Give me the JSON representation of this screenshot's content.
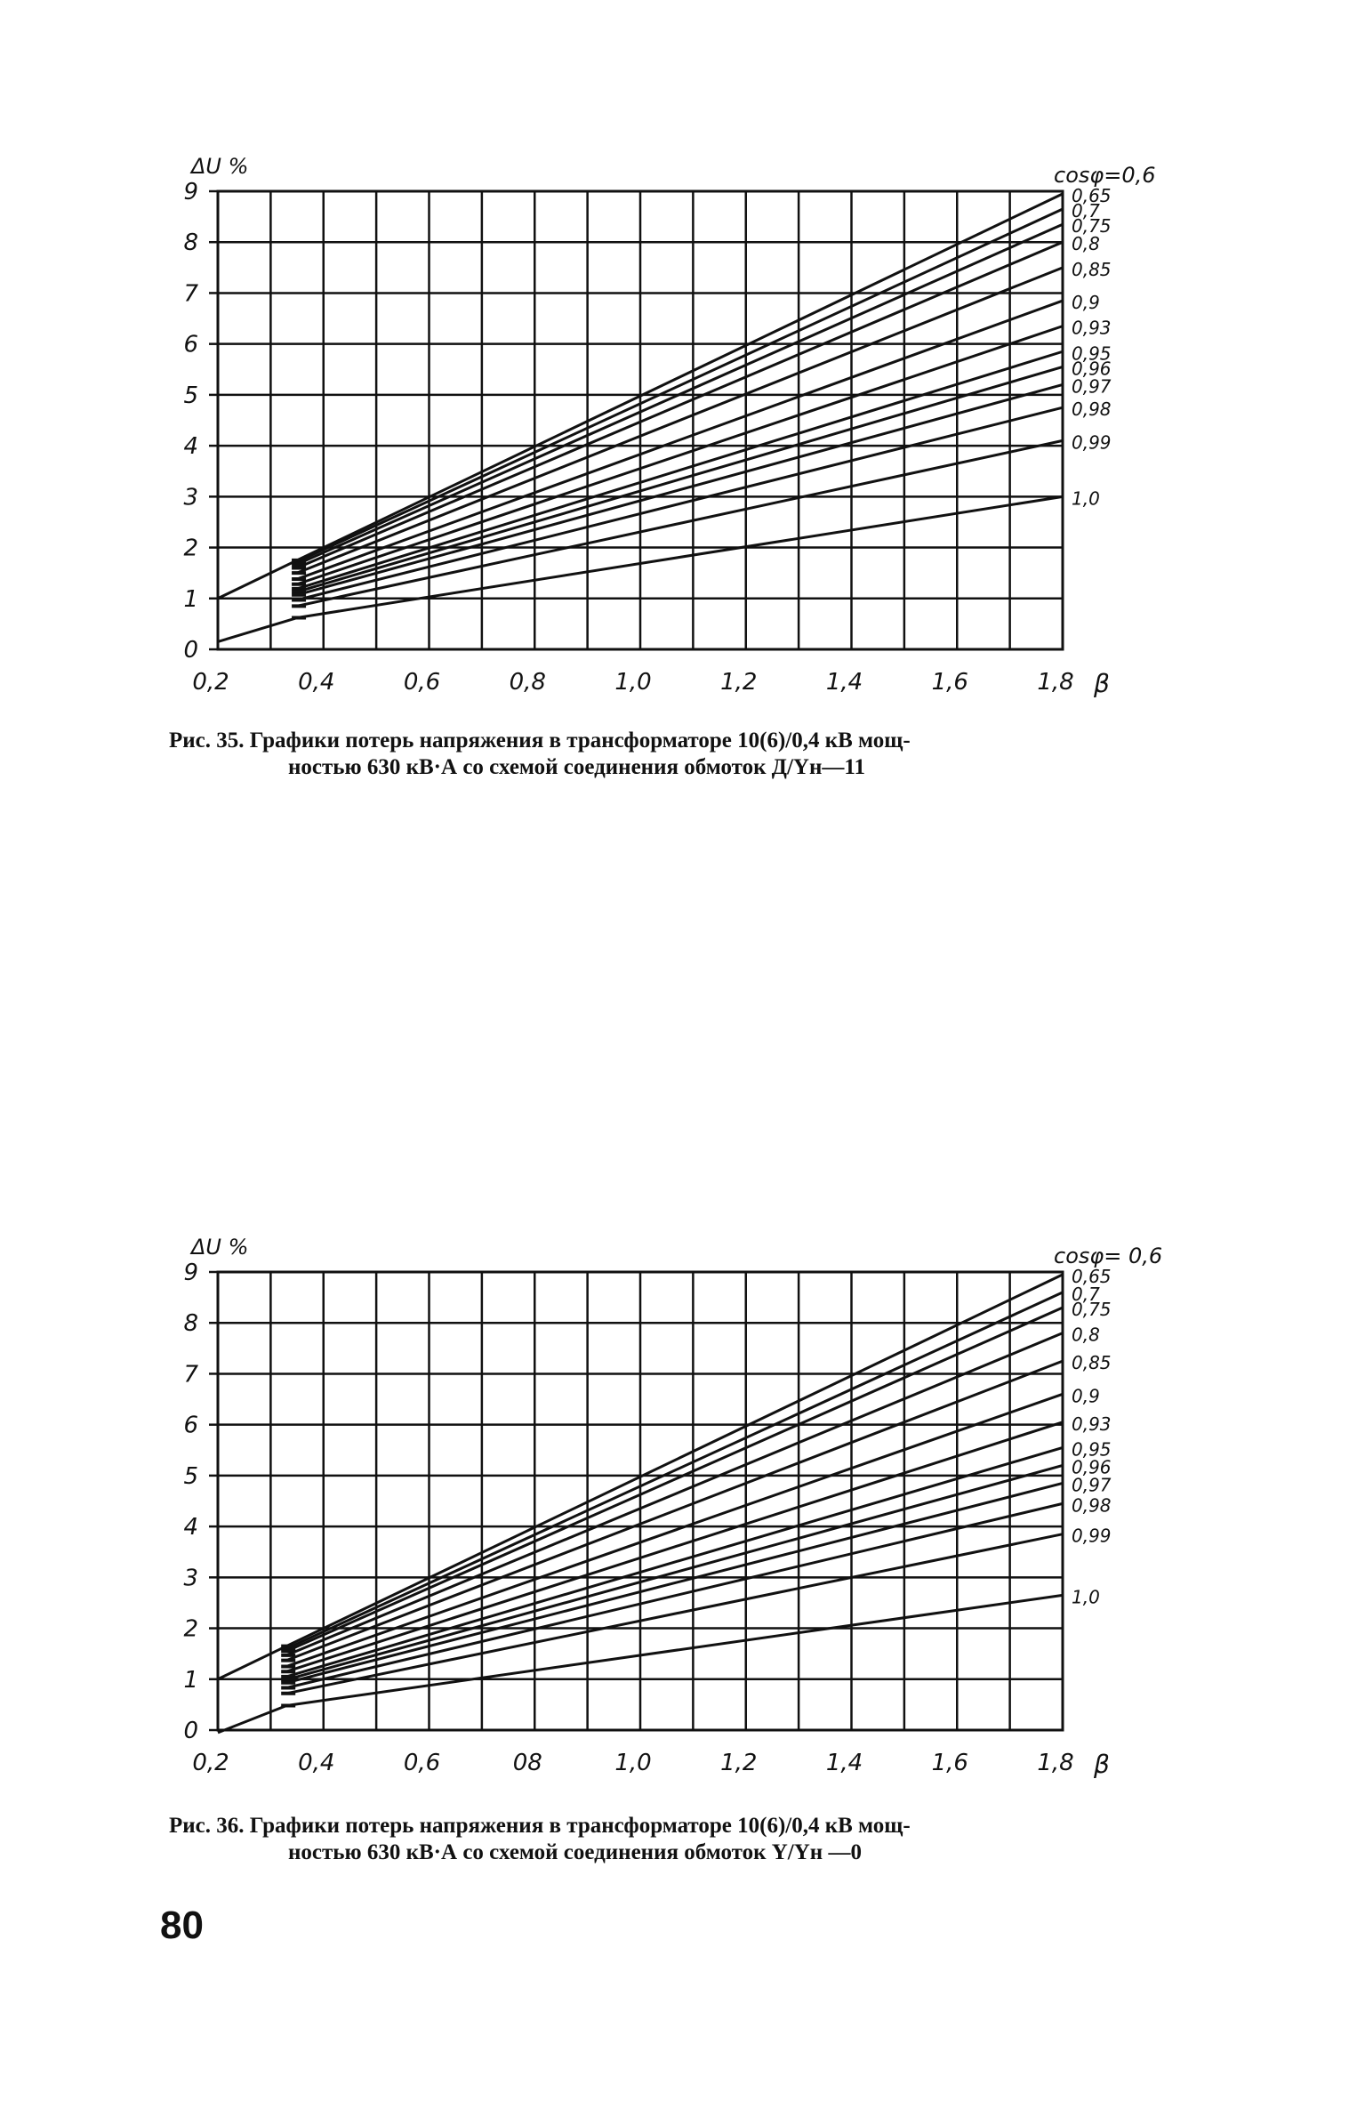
{
  "page_number": "80",
  "captions": [
    {
      "label": "Рис. 35.",
      "line1": "Графики потерь напряжения в трансформаторе 10(6)/0,4 кВ мощ-",
      "line2": "ностью 630 кВ·А со схемой соединения обмоток Д/Yн—11"
    },
    {
      "label": "Рис. 36.",
      "line1": "Графики потерь напряжения в трансформаторе 10(6)/0,4 кВ мощ-",
      "line2": "ностью 630 кВ·А со схемой соединения обмоток Y/Yн —0"
    }
  ],
  "chart_data": [
    {
      "type": "line",
      "ylabel": "ΔU %",
      "xlabel": "β",
      "legend_title": "cosφ=0,6",
      "xlim": [
        0.2,
        1.8
      ],
      "ylim": [
        0,
        9
      ],
      "grid": true,
      "legend_placement": "right",
      "x_ticks": [
        "0,2",
        "0,4",
        "0,6",
        "0,8",
        "1,0",
        "1,2",
        "1,4",
        "1,6",
        "1,8"
      ],
      "y_ticks": [
        "0",
        "1",
        "2",
        "3",
        "4",
        "5",
        "6",
        "7",
        "8",
        "9"
      ],
      "x": [
        0.35,
        1.8
      ],
      "series": [
        {
          "name": "0,65",
          "values": [
            1.75,
            8.95
          ]
        },
        {
          "name": "0,7",
          "values": [
            1.72,
            8.65
          ]
        },
        {
          "name": "0,75",
          "values": [
            1.67,
            8.35
          ]
        },
        {
          "name": "0,8",
          "values": [
            1.6,
            8.0
          ]
        },
        {
          "name": "0,85",
          "values": [
            1.5,
            7.5
          ]
        },
        {
          "name": "0,9",
          "values": [
            1.38,
            6.85
          ]
        },
        {
          "name": "0,93",
          "values": [
            1.28,
            6.35
          ]
        },
        {
          "name": "0,95",
          "values": [
            1.19,
            5.85
          ]
        },
        {
          "name": "0,96",
          "values": [
            1.13,
            5.55
          ]
        },
        {
          "name": "0,97",
          "values": [
            1.07,
            5.2
          ]
        },
        {
          "name": "0,98",
          "values": [
            0.97,
            4.75
          ]
        },
        {
          "name": "0,99",
          "values": [
            0.85,
            4.1
          ]
        },
        {
          "name": "1,0",
          "values": [
            0.62,
            3.0
          ]
        }
      ],
      "extra_lines": [
        {
          "x": [
            0.2,
            0.35
          ],
          "values": [
            1.0,
            1.75
          ]
        },
        {
          "x": [
            0.2,
            0.35
          ],
          "values": [
            0.15,
            0.62
          ]
        }
      ]
    },
    {
      "type": "line",
      "ylabel": "ΔU %",
      "xlabel": "β",
      "legend_title": "cosφ= 0,6",
      "xlim": [
        0.2,
        1.8
      ],
      "ylim": [
        0,
        9
      ],
      "grid": true,
      "legend_placement": "right",
      "x_ticks": [
        "0,2",
        "0,4",
        "0,6",
        "08",
        "1,0",
        "1,2",
        "1,4",
        "1,6",
        "1,8"
      ],
      "y_ticks": [
        "0",
        "1",
        "2",
        "3",
        "4",
        "5",
        "6",
        "7",
        "8",
        "9"
      ],
      "x": [
        0.33,
        1.8
      ],
      "series": [
        {
          "name": "0,65",
          "values": [
            1.65,
            8.95
          ]
        },
        {
          "name": "0,7",
          "values": [
            1.6,
            8.6
          ]
        },
        {
          "name": "0,75",
          "values": [
            1.55,
            8.3
          ]
        },
        {
          "name": "0,8",
          "values": [
            1.47,
            7.8
          ]
        },
        {
          "name": "0,85",
          "values": [
            1.37,
            7.25
          ]
        },
        {
          "name": "0,9",
          "values": [
            1.25,
            6.6
          ]
        },
        {
          "name": "0,93",
          "values": [
            1.15,
            6.05
          ]
        },
        {
          "name": "0,95",
          "values": [
            1.05,
            5.55
          ]
        },
        {
          "name": "0,96",
          "values": [
            0.99,
            5.2
          ]
        },
        {
          "name": "0,97",
          "values": [
            0.93,
            4.85
          ]
        },
        {
          "name": "0,98",
          "values": [
            0.83,
            4.45
          ]
        },
        {
          "name": "0,99",
          "values": [
            0.72,
            3.85
          ]
        },
        {
          "name": "1,0",
          "values": [
            0.48,
            2.65
          ]
        }
      ],
      "extra_lines": [
        {
          "x": [
            0.2,
            0.33
          ],
          "values": [
            1.0,
            1.65
          ]
        },
        {
          "x": [
            0.2,
            0.33
          ],
          "values": [
            -0.05,
            0.48
          ]
        }
      ]
    }
  ]
}
